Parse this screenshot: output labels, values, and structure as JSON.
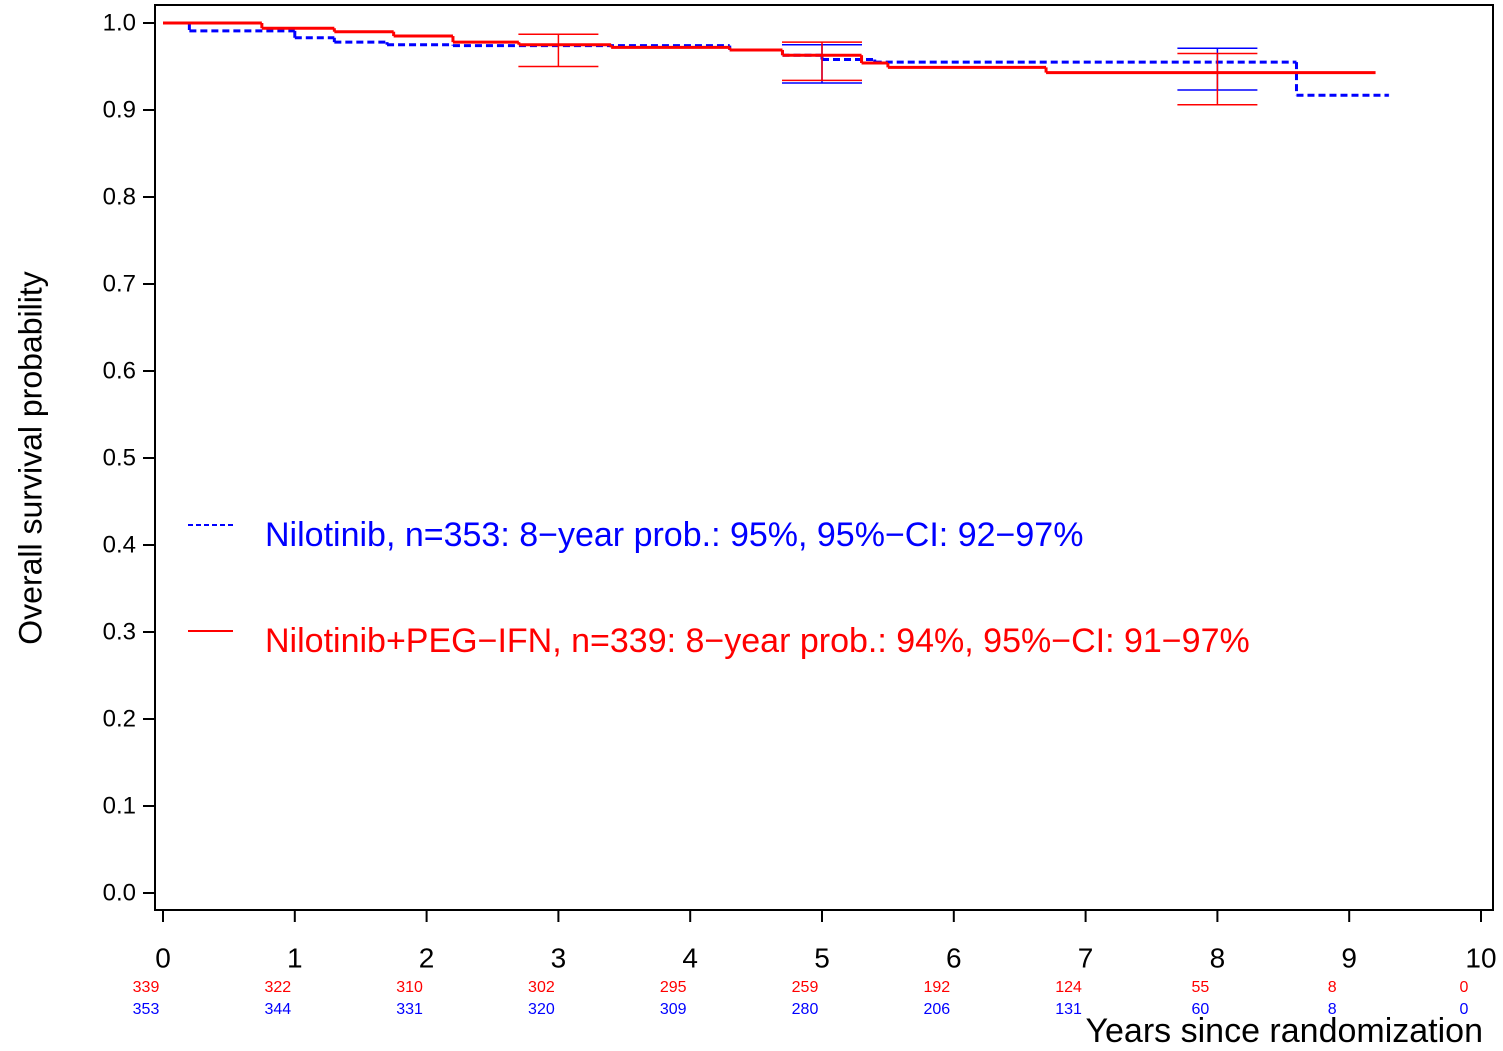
{
  "chart_data": {
    "type": "step",
    "ylabel": "Overall survival probability",
    "xlabel": "Years since randomization",
    "xlim": [
      0,
      10
    ],
    "xticks": [
      0,
      1,
      2,
      3,
      4,
      5,
      6,
      7,
      8,
      9,
      10
    ],
    "ylim": [
      0,
      1
    ],
    "yticks": [
      {
        "value": 0,
        "label": "0.0"
      },
      0.1,
      0.2,
      0.3,
      0.4,
      0.5,
      0.6,
      0.7,
      0.8,
      0.9,
      {
        "value": 1,
        "label": "1.0"
      }
    ],
    "series": [
      {
        "name": "Nilotinib, n=353: 8−year prob.: 95%, 95%−CI: 92−97%",
        "color": "#0000ff",
        "style": "dashed",
        "x": [
          0,
          0.2,
          1.0,
          1.3,
          1.7,
          2.2,
          4.3,
          4.7,
          5.0,
          5.4,
          8.6,
          9.3
        ],
        "values": [
          1.0,
          0.991,
          0.983,
          0.978,
          0.975,
          0.974,
          0.969,
          0.963,
          0.958,
          0.955,
          0.917,
          0.917
        ],
        "ci": [
          {
            "x": 5,
            "lower": 0.931,
            "upper": 0.975
          },
          {
            "x": 8,
            "lower": 0.923,
            "upper": 0.971
          }
        ]
      },
      {
        "name": "Nilotinib+PEG−IFN, n=339: 8−year prob.: 94%, 95%−CI: 91−97%",
        "color": "#ff0000",
        "style": "solid",
        "x": [
          0,
          0.75,
          1.3,
          1.75,
          2.2,
          2.7,
          3.4,
          4.3,
          4.7,
          5.3,
          5.5,
          6.7,
          9.2
        ],
        "values": [
          1.0,
          0.994,
          0.99,
          0.985,
          0.978,
          0.975,
          0.972,
          0.969,
          0.963,
          0.954,
          0.949,
          0.943,
          0.943
        ],
        "ci": [
          {
            "x": 3,
            "lower": 0.95,
            "upper": 0.987
          },
          {
            "x": 5,
            "lower": 0.934,
            "upper": 0.978
          },
          {
            "x": 8,
            "lower": 0.906,
            "upper": 0.965
          }
        ]
      }
    ],
    "risk_table": [
      {
        "color": "#ff0000",
        "values": [
          339,
          322,
          310,
          302,
          295,
          259,
          192,
          124,
          55,
          8,
          0
        ]
      },
      {
        "color": "#0000ff",
        "values": [
          353,
          344,
          331,
          320,
          309,
          280,
          206,
          131,
          60,
          8,
          0
        ]
      }
    ]
  }
}
